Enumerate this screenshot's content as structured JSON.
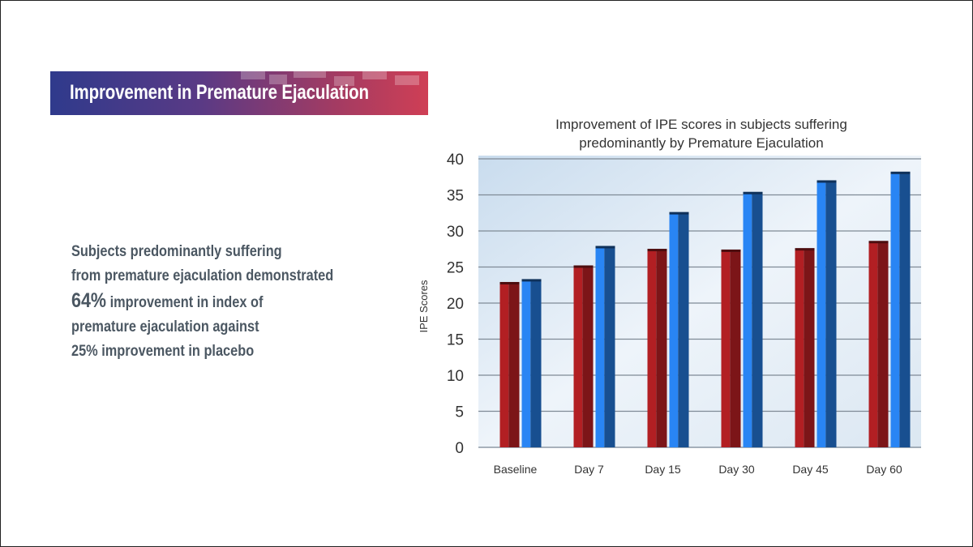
{
  "banner": {
    "title": "Improvement in Premature Ejaculation"
  },
  "description": {
    "line1": "Subjects predominantly suffering",
    "line2": "from premature ejaculation demonstrated",
    "highlight": "64%",
    "line3_rest": " improvement in index of",
    "line4": "premature ejaculation against",
    "line5": "25% improvement in placebo"
  },
  "chart_data": {
    "type": "bar",
    "title": "Improvement of IPE scores in subjects suffering predominantly by Premature Ejaculation",
    "title_lines": [
      "Improvement of IPE scores in subjects suffering",
      "predominantly by Premature Ejaculation"
    ],
    "xlabel": "",
    "ylabel": "IPE Scores",
    "ylim": [
      0,
      40
    ],
    "yticks": [
      0,
      5,
      10,
      15,
      20,
      25,
      30,
      35,
      40
    ],
    "grid": true,
    "categories": [
      "Baseline",
      "Day 7",
      "Day 15",
      "Day 30",
      "Day 45",
      "Day 60"
    ],
    "series": [
      {
        "values": [
          22.7,
          25.0,
          27.3,
          27.2,
          27.4,
          28.4
        ],
        "color": "#9b1b1f"
      },
      {
        "values": [
          23.1,
          27.7,
          32.4,
          35.2,
          36.8,
          38.0
        ],
        "color": "#1f63b5"
      }
    ]
  }
}
